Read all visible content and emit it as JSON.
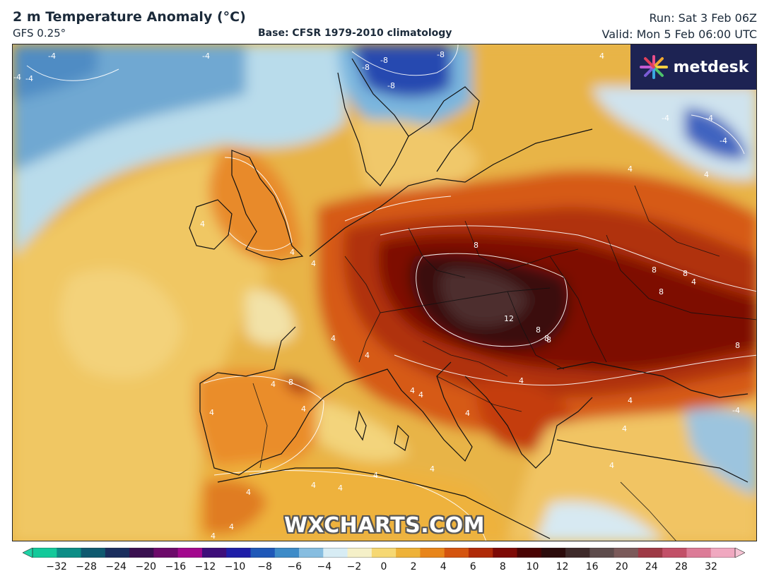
{
  "header": {
    "title": "2 m Temperature Anomaly (°C)",
    "model": "GFS 0.25°",
    "base": "Base: CFSR 1979-2010 climatology",
    "run": "Run: Sat 3 Feb 06Z",
    "valid": "Valid: Mon 5 Feb 06:00 UTC"
  },
  "logo": {
    "text": "metdesk",
    "icon": "starburst-logo-icon"
  },
  "watermark": "WXCHARTS.COM",
  "contour_labels": [
    "-4",
    "-4",
    "-4",
    "-4",
    "-8",
    "-8",
    "-8",
    "-8",
    "-4",
    "-4",
    "-4",
    "4",
    "4",
    "4",
    "4",
    "4",
    "4",
    "4",
    "8",
    "8",
    "8",
    "8",
    "8",
    "8",
    "8",
    "12",
    "4",
    "4",
    "4",
    "4",
    "4",
    "4",
    "4",
    "4",
    "4",
    "4",
    "4",
    "4",
    "8",
    "8",
    "4",
    "4",
    "4",
    "4",
    "4",
    "4",
    "4",
    "-4"
  ],
  "colorbar": {
    "ticks": [
      "−32",
      "−28",
      "−24",
      "−20",
      "−16",
      "−12",
      "−10",
      "−8",
      "−6",
      "−4",
      "−2",
      "0",
      "2",
      "4",
      "6",
      "8",
      "10",
      "12",
      "16",
      "20",
      "24",
      "28",
      "32"
    ],
    "colors": [
      "#12c99a",
      "#0c8d86",
      "#0f5a70",
      "#1a2e5e",
      "#3a1050",
      "#6d0a6a",
      "#a3088e",
      "#3e0e7a",
      "#1f1ea8",
      "#1f58b8",
      "#3d8bc8",
      "#86bde0",
      "#d7ecf4",
      "#f5f0c8",
      "#f6d873",
      "#eeb238",
      "#e8851a",
      "#d4540f",
      "#b02a08",
      "#7e0a06",
      "#4a0404",
      "#2c0c0c",
      "#3e2a2a",
      "#5e4c4c",
      "#7b5a5a",
      "#9e3a46",
      "#c25068",
      "#dc7b97",
      "#f0a8c0"
    ]
  }
}
